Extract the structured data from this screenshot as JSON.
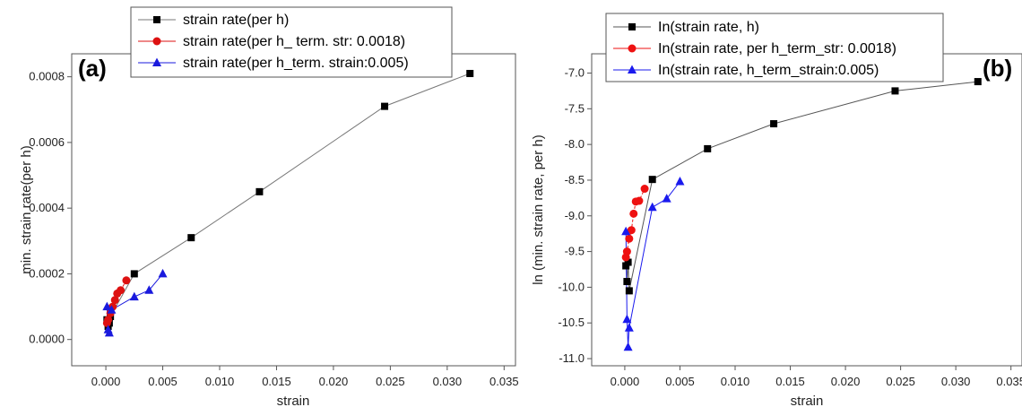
{
  "chart_data": [
    {
      "type": "line",
      "panel_label": "(a)",
      "xlabel": "strain",
      "ylabel": "min. strain rate(per h)",
      "xlim": [
        -0.003,
        0.036
      ],
      "ylim": [
        -8e-05,
        0.00087
      ],
      "xticks": [
        "0.000",
        "0.005",
        "0.010",
        "0.015",
        "0.020",
        "0.025",
        "0.030",
        "0.035"
      ],
      "xtick_values": [
        0,
        0.005,
        0.01,
        0.015,
        0.02,
        0.025,
        0.03,
        0.035
      ],
      "yticks": [
        "0.0000",
        "0.0002",
        "0.0004",
        "0.0006",
        "0.0008"
      ],
      "ytick_values": [
        0,
        0.0002,
        0.0004,
        0.0006,
        0.0008
      ],
      "legend_position": "top",
      "grid": false,
      "series": [
        {
          "name": "strain rate(per h)",
          "color": "#000000",
          "line_color": "#777777",
          "marker": "square",
          "x": [
            0.0001,
            0.0002,
            0.0003,
            0.0004,
            0.0025,
            0.0075,
            0.0135,
            0.0245,
            0.032
          ],
          "y": [
            6e-05,
            4e-05,
            5e-05,
            7e-05,
            0.0002,
            0.00031,
            0.00045,
            0.00071,
            0.00081
          ]
        },
        {
          "name": "strain rate(per h_ term. str: 0.0018)",
          "color": "#dd1111",
          "line_color": "#dd1111",
          "marker": "circle",
          "x": [
            0.0001,
            0.0002,
            0.0004,
            0.0006,
            0.0008,
            0.001,
            0.0013,
            0.0018
          ],
          "y": [
            5e-05,
            6e-05,
            8e-05,
            0.0001,
            0.00012,
            0.00014,
            0.00015,
            0.00018
          ]
        },
        {
          "name": "strain rate(per h_term. strain:0.005)",
          "color": "#1a1add",
          "line_color": "#1a1add",
          "marker": "triangle",
          "x": [
            0.0001,
            0.0002,
            0.0003,
            0.0005,
            0.0025,
            0.0038,
            0.005
          ],
          "y": [
            0.0001,
            3e-05,
            2e-05,
            9e-05,
            0.00013,
            0.00015,
            0.0002
          ]
        }
      ]
    },
    {
      "type": "line",
      "panel_label": "(b)",
      "xlabel": "strain",
      "ylabel": "ln (min. strain rate, per h)",
      "xlim": [
        -0.003,
        0.036
      ],
      "ylim": [
        -11.1,
        -6.73
      ],
      "xticks": [
        "0.000",
        "0.005",
        "0.010",
        "0.015",
        "0.020",
        "0.025",
        "0.030",
        "0.035"
      ],
      "xtick_values": [
        0,
        0.005,
        0.01,
        0.015,
        0.02,
        0.025,
        0.03,
        0.035
      ],
      "yticks": [
        "-7.0",
        "-7.5",
        "-8.0",
        "-8.5",
        "-9.0",
        "-9.5",
        "-10.0",
        "-10.5",
        "-11.0"
      ],
      "ytick_values": [
        -7,
        -7.5,
        -8,
        -8.5,
        -9,
        -9.5,
        -10,
        -10.5,
        -11
      ],
      "legend_position": "top",
      "grid": false,
      "series": [
        {
          "name": "In(strain rate, h)",
          "color": "#000000",
          "line_color": "#555555",
          "marker": "square",
          "x": [
            0.0001,
            0.0002,
            0.0003,
            0.0004,
            0.0025,
            0.0075,
            0.0135,
            0.0245,
            0.032
          ],
          "y": [
            -9.7,
            -9.92,
            -9.65,
            -10.05,
            -8.49,
            -8.06,
            -7.71,
            -7.25,
            -7.12
          ]
        },
        {
          "name": "In(strain rate, per h_term_str: 0.0018)",
          "color": "#ee1111",
          "line_color": "#ee1111",
          "marker": "circle",
          "x": [
            0.0001,
            0.0002,
            0.0004,
            0.0006,
            0.0008,
            0.001,
            0.0013,
            0.0018
          ],
          "y": [
            -9.58,
            -9.5,
            -9.32,
            -9.2,
            -8.97,
            -8.8,
            -8.79,
            -8.62
          ]
        },
        {
          "name": "In(strain rate, h_term_strain:0.005)",
          "color": "#1a1aee",
          "line_color": "#1a1aee",
          "marker": "triangle",
          "x": [
            0.0001,
            0.0002,
            0.0003,
            0.0004,
            0.0025,
            0.0038,
            0.005
          ],
          "y": [
            -9.22,
            -10.45,
            -10.84,
            -10.57,
            -8.88,
            -8.76,
            -8.52
          ]
        }
      ]
    }
  ]
}
